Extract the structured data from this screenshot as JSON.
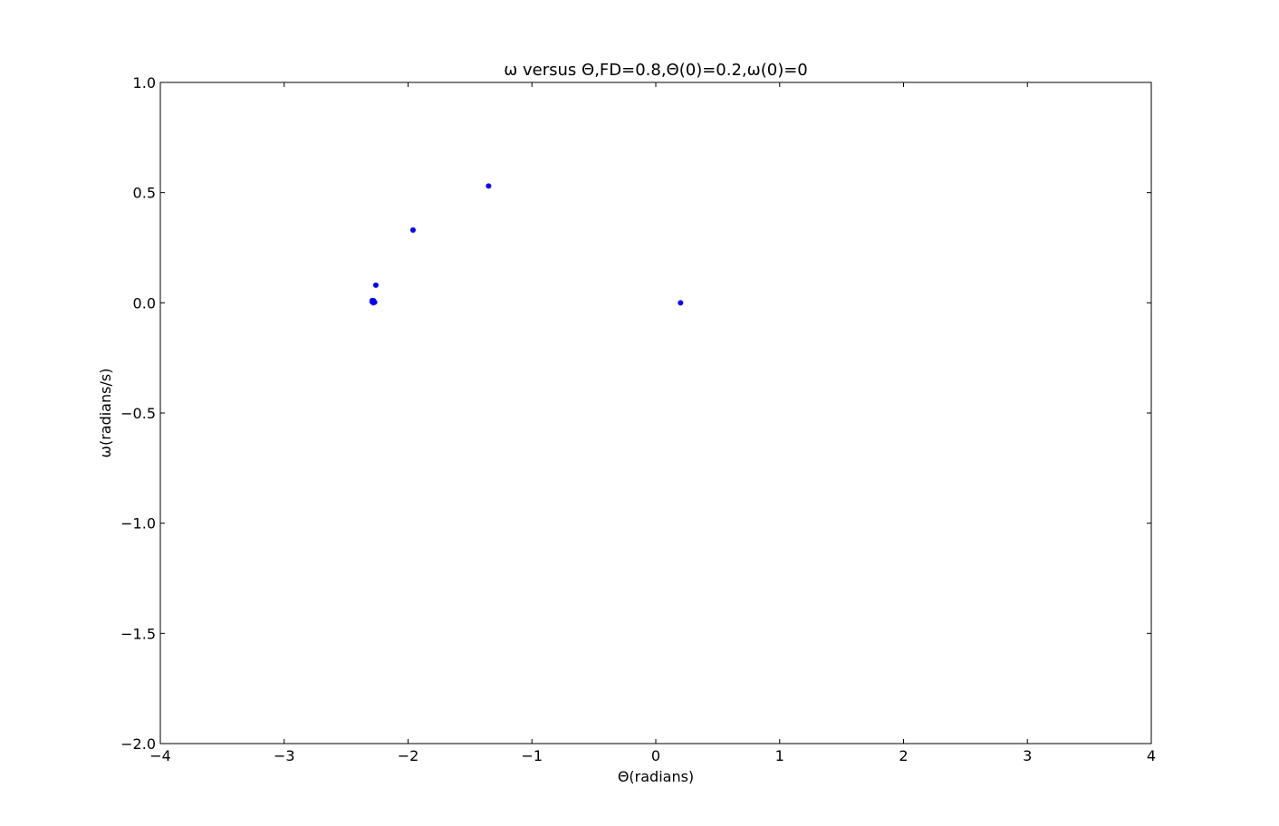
{
  "chart_data": {
    "type": "scatter",
    "title": "ω versus Θ,FD=0.8,Θ(0)=0.2,ω(0)=0",
    "xlabel": "Θ(radians)",
    "ylabel": "ω(radians/s)",
    "xlim": [
      -4,
      4
    ],
    "ylim": [
      -2.0,
      1.0
    ],
    "x_ticks": [
      -4,
      -3,
      -2,
      -1,
      0,
      1,
      2,
      3,
      4
    ],
    "x_tick_labels": [
      "−4",
      "−3",
      "−2",
      "−1",
      "0",
      "1",
      "2",
      "3",
      "4"
    ],
    "y_ticks": [
      1.0,
      0.5,
      0.0,
      -0.5,
      -1.0,
      -1.5,
      -2.0
    ],
    "y_tick_labels": [
      "1.0",
      "0.5",
      "0.0",
      "−0.5",
      "−1.0",
      "−1.5",
      "−2.0"
    ],
    "grid": false,
    "marker_color": "#0000ff",
    "series": [
      {
        "x": [
          0.2,
          -1.35,
          -1.96,
          -2.26,
          -2.28,
          -2.29,
          -2.28,
          -2.29,
          -2.28,
          -2.27
        ],
        "y": [
          0.0,
          0.53,
          0.33,
          0.08,
          0.01,
          0.005,
          0.0,
          0.01,
          0.005,
          0.003
        ]
      }
    ]
  }
}
